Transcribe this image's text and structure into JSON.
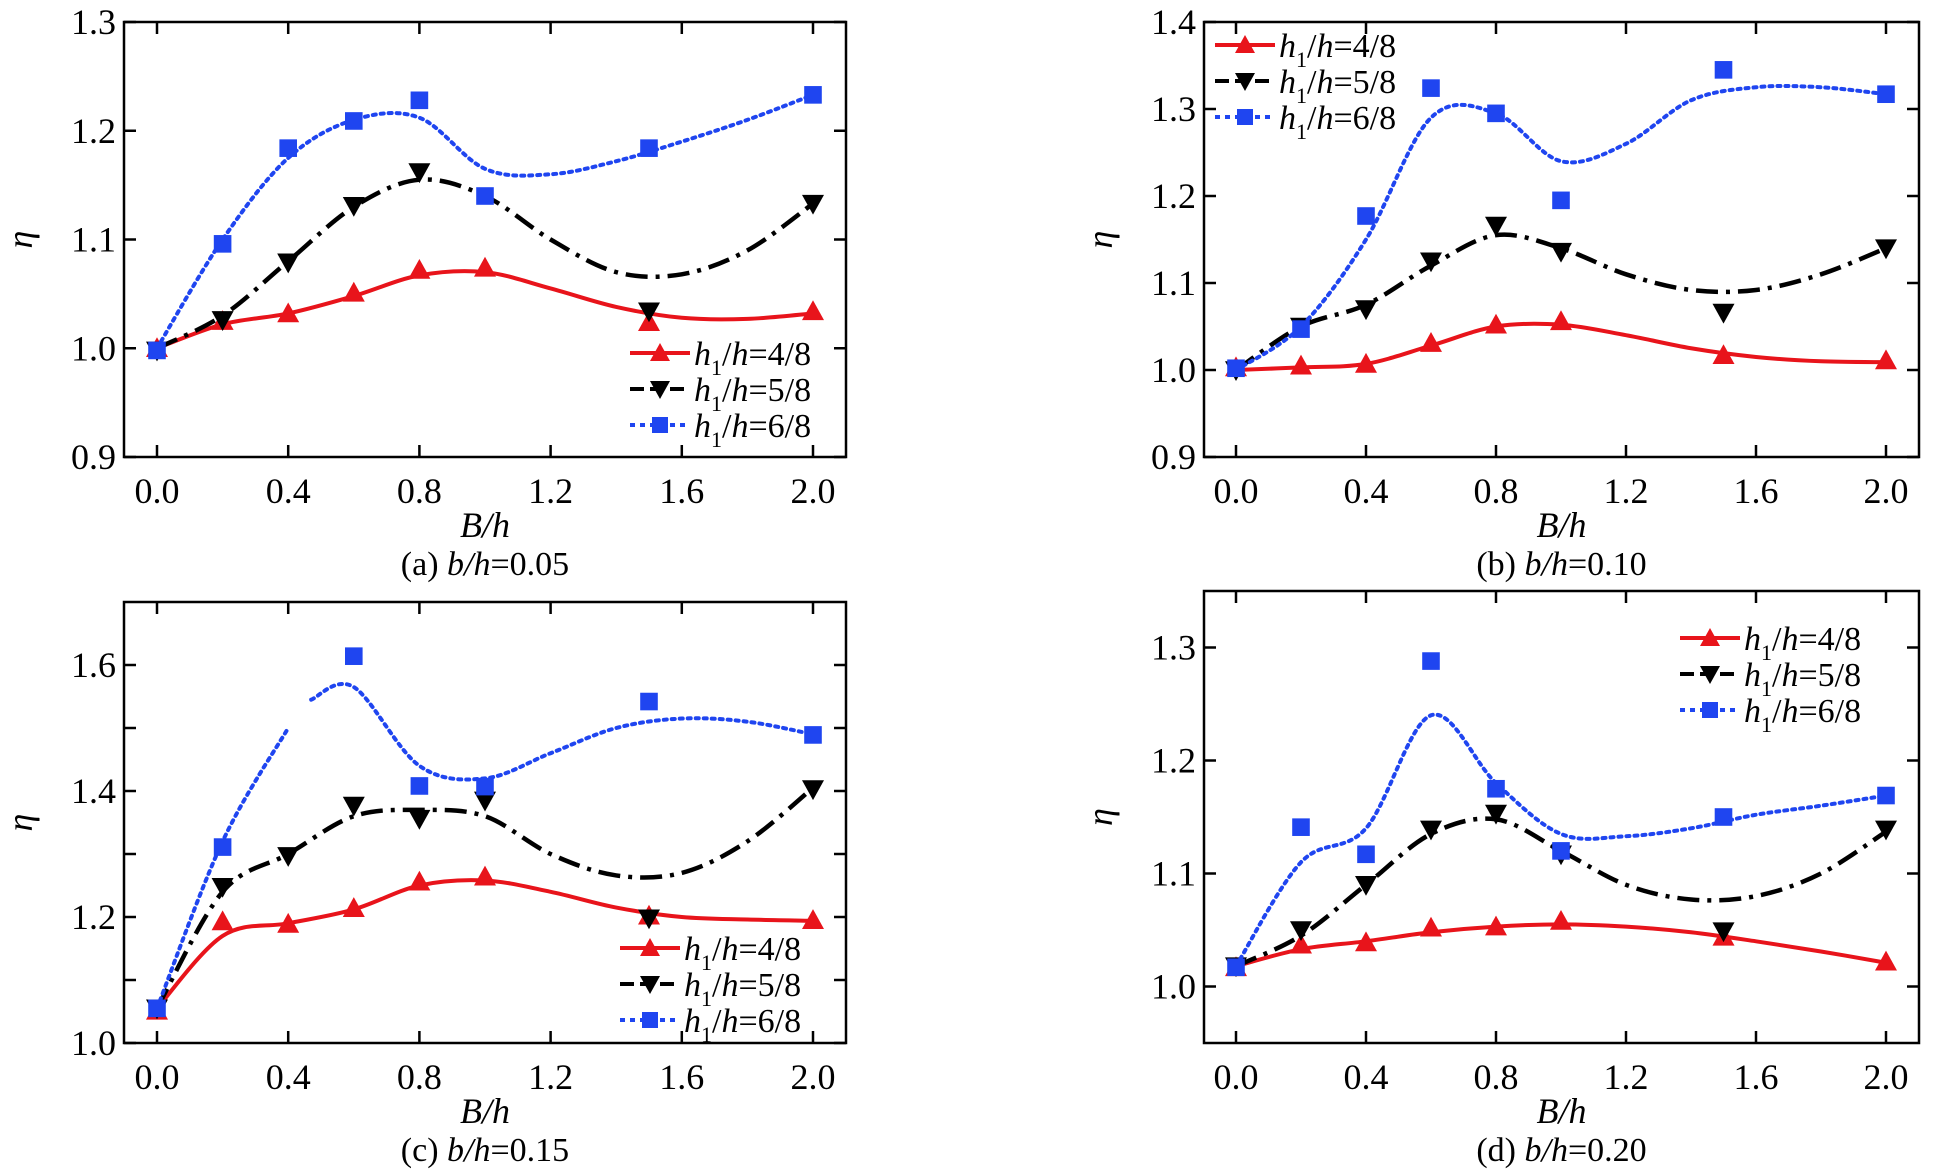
{
  "figure": {
    "series_styles": [
      {
        "key": "h4",
        "label_main": "h",
        "label_sub": "1",
        "label_rest": "/h=4/8",
        "color": "#e8141b",
        "marker": "triangle-up",
        "dash": "solid"
      },
      {
        "key": "h5",
        "label_main": "h",
        "label_sub": "1",
        "label_rest": "/h=5/8",
        "color": "#000000",
        "marker": "triangle-down",
        "dash": "dashdot"
      },
      {
        "key": "h6",
        "label_main": "h",
        "label_sub": "1",
        "label_rest": "/h=6/8",
        "color": "#1f45f0",
        "marker": "square",
        "dash": "dot"
      }
    ]
  },
  "chart_data": [
    {
      "type": "line",
      "panel": "a",
      "caption_prefix": "(a) ",
      "caption_var": "b/h",
      "caption_value": "=0.05",
      "xlabel": "B/h",
      "ylabel": "η",
      "xlim": [
        0,
        2.0
      ],
      "ylim": [
        0.9,
        1.3
      ],
      "xticks": [
        0.0,
        0.4,
        0.8,
        1.2,
        1.6,
        2.0
      ],
      "xtick_labels": [
        "0.0",
        "0.4",
        "0.8",
        "1.2",
        "1.6",
        "2.0"
      ],
      "yticks": [
        0.9,
        1.0,
        1.1,
        1.2,
        1.3
      ],
      "ytick_labels": [
        "0.9",
        "1.0",
        "1.1",
        "1.2",
        "1.3"
      ],
      "legend_position": "bottom-right",
      "x": [
        0.0,
        0.2,
        0.4,
        0.6,
        0.8,
        1.0,
        1.5,
        2.0
      ],
      "series": [
        {
          "name": "h1/h=4/8",
          "values": [
            1.0,
            1.025,
            1.032,
            1.051,
            1.072,
            1.074,
            1.024,
            1.034
          ],
          "fit": [
            1.0,
            1.022,
            1.032,
            1.048,
            1.067,
            1.07,
            1.055,
            1.038,
            1.028,
            1.027,
            1.032
          ]
        },
        {
          "name": "h1/h=5/8",
          "values": [
            0.998,
            1.026,
            1.079,
            1.131,
            1.162,
            null,
            1.034,
            1.133
          ],
          "fit": [
            1.0,
            1.03,
            1.08,
            1.13,
            1.155,
            1.14,
            1.1,
            1.07,
            1.068,
            1.09,
            1.133
          ]
        },
        {
          "name": "h1/h=6/8",
          "values": [
            0.998,
            1.096,
            1.184,
            1.209,
            1.228,
            1.14,
            1.184,
            1.233
          ],
          "fit": [
            1.0,
            1.1,
            1.175,
            1.21,
            1.212,
            1.165,
            1.16,
            1.172,
            1.19,
            1.21,
            1.233
          ]
        }
      ],
      "fit_x": [
        0.0,
        0.2,
        0.4,
        0.6,
        0.8,
        1.0,
        1.2,
        1.4,
        1.6,
        1.8,
        2.0
      ]
    },
    {
      "type": "line",
      "panel": "b",
      "caption_prefix": "(b) ",
      "caption_var": "b/h",
      "caption_value": "=0.10",
      "xlabel": "B/h",
      "ylabel": "η",
      "xlim": [
        0,
        2.0
      ],
      "ylim": [
        0.9,
        1.4
      ],
      "xticks": [
        0.0,
        0.4,
        0.8,
        1.2,
        1.6,
        2.0
      ],
      "xtick_labels": [
        "0.0",
        "0.4",
        "0.8",
        "1.2",
        "1.6",
        "2.0"
      ],
      "yticks": [
        0.9,
        1.0,
        1.1,
        1.2,
        1.3,
        1.4
      ],
      "ytick_labels": [
        "0.9",
        "1.0",
        "1.1",
        "1.2",
        "1.3",
        "1.4"
      ],
      "legend_position": "top-left",
      "x": [
        0.0,
        0.2,
        0.4,
        0.6,
        0.8,
        1.0,
        1.5,
        2.0
      ],
      "series": [
        {
          "name": "h1/h=4/8",
          "values": [
            1.003,
            1.005,
            1.007,
            1.031,
            1.052,
            1.056,
            1.017,
            1.011
          ],
          "fit": [
            1.0,
            1.003,
            1.007,
            1.028,
            1.05,
            1.052,
            1.04,
            1.025,
            1.015,
            1.01,
            1.009
          ]
        },
        {
          "name": "h1/h=5/8",
          "values": [
            1.0,
            1.05,
            1.07,
            1.125,
            1.166,
            1.136,
            1.066,
            1.14
          ],
          "fit": [
            1.0,
            1.05,
            1.075,
            1.12,
            1.155,
            1.14,
            1.11,
            1.092,
            1.092,
            1.11,
            1.14
          ]
        },
        {
          "name": "h1/h=6/8",
          "values": [
            1.002,
            1.047,
            1.177,
            1.324,
            1.295,
            1.195,
            1.345,
            1.317
          ],
          "fit": [
            1.0,
            1.05,
            1.15,
            1.29,
            1.295,
            1.24,
            1.26,
            1.31,
            1.325,
            1.325,
            1.317
          ]
        }
      ],
      "fit_x": [
        0.0,
        0.2,
        0.4,
        0.6,
        0.8,
        1.0,
        1.2,
        1.4,
        1.6,
        1.8,
        2.0
      ]
    },
    {
      "type": "line",
      "panel": "c",
      "caption_prefix": "(c) ",
      "caption_var": "b/h",
      "caption_value": "=0.15",
      "xlabel": "B/h",
      "ylabel": "η",
      "xlim": [
        0,
        2.0
      ],
      "ylim": [
        1.0,
        1.7
      ],
      "xticks": [
        0.0,
        0.4,
        0.8,
        1.2,
        1.6,
        2.0
      ],
      "xtick_labels": [
        "0.0",
        "0.4",
        "0.8",
        "1.2",
        "1.6",
        "2.0"
      ],
      "yticks": [
        1.0,
        1.1,
        1.2,
        1.3,
        1.4,
        1.5,
        1.6
      ],
      "ytick_labels": [
        "1.0",
        "",
        "1.2",
        "",
        "1.4",
        "",
        "1.6"
      ],
      "legend_position": "bottom-right",
      "x": [
        0.0,
        0.2,
        0.4,
        0.6,
        0.8,
        1.0,
        1.5,
        2.0
      ],
      "series": [
        {
          "name": "h1/h=4/8",
          "values": [
            1.051,
            1.193,
            1.189,
            1.214,
            1.256,
            1.264,
            1.202,
            1.195
          ],
          "fit": [
            1.055,
            1.17,
            1.19,
            1.212,
            1.25,
            1.258,
            1.24,
            1.215,
            1.2,
            1.196,
            1.194
          ]
        },
        {
          "name": "h1/h=5/8",
          "values": [
            1.055,
            1.248,
            1.297,
            1.377,
            1.356,
            1.385,
            1.198,
            1.403
          ],
          "fit": [
            1.055,
            1.24,
            1.3,
            1.36,
            1.37,
            1.36,
            1.3,
            1.266,
            1.27,
            1.32,
            1.405
          ]
        },
        {
          "name": "h1/h=6/8",
          "values": [
            1.055,
            1.311,
            null,
            1.614,
            1.408,
            1.407,
            1.542,
            1.489
          ],
          "fit": [
            1.055,
            1.32,
            1.5,
            1.565,
            1.44,
            1.42,
            1.46,
            1.5,
            1.515,
            1.51,
            1.49
          ]
        }
      ],
      "fit_x": [
        0.0,
        0.2,
        0.4,
        0.6,
        0.8,
        1.0,
        1.2,
        1.4,
        1.6,
        1.8,
        2.0
      ]
    },
    {
      "type": "line",
      "panel": "d",
      "caption_prefix": "(d) ",
      "caption_var": "b/h",
      "caption_value": "=0.20",
      "xlabel": "B/h",
      "ylabel": "η",
      "xlim": [
        0,
        2.0
      ],
      "ylim": [
        0.95,
        1.35
      ],
      "xticks": [
        0.0,
        0.4,
        0.8,
        1.2,
        1.6,
        2.0
      ],
      "xtick_labels": [
        "0.0",
        "0.4",
        "0.8",
        "1.2",
        "1.6",
        "2.0"
      ],
      "yticks": [
        1.0,
        1.1,
        1.2,
        1.3
      ],
      "ytick_labels": [
        "1.0",
        "1.1",
        "1.2",
        "1.3"
      ],
      "legend_position": "top-right",
      "x": [
        0.0,
        0.2,
        0.4,
        0.6,
        0.8,
        1.0,
        1.5,
        2.0
      ],
      "series": [
        {
          "name": "h1/h=4/8",
          "values": [
            1.017,
            1.037,
            1.039,
            1.052,
            1.053,
            1.058,
            1.044,
            1.022
          ],
          "fit": [
            1.018,
            1.033,
            1.04,
            1.048,
            1.053,
            1.055,
            1.053,
            1.048,
            1.04,
            1.031,
            1.021
          ]
        },
        {
          "name": "h1/h=5/8",
          "values": [
            1.018,
            1.05,
            1.09,
            1.139,
            1.153,
            1.117,
            1.049,
            1.139
          ],
          "fit": [
            1.018,
            1.045,
            1.09,
            1.135,
            1.148,
            1.12,
            1.09,
            1.077,
            1.08,
            1.1,
            1.137
          ]
        },
        {
          "name": "h1/h=6/8",
          "values": [
            1.017,
            1.141,
            1.117,
            1.288,
            1.175,
            1.12,
            1.15,
            1.169
          ],
          "fit": [
            1.018,
            1.11,
            1.14,
            1.24,
            1.18,
            1.135,
            1.133,
            1.14,
            1.152,
            1.16,
            1.169
          ]
        }
      ],
      "fit_x": [
        0.0,
        0.2,
        0.4,
        0.6,
        0.8,
        1.0,
        1.2,
        1.4,
        1.6,
        1.8,
        2.0
      ]
    }
  ]
}
